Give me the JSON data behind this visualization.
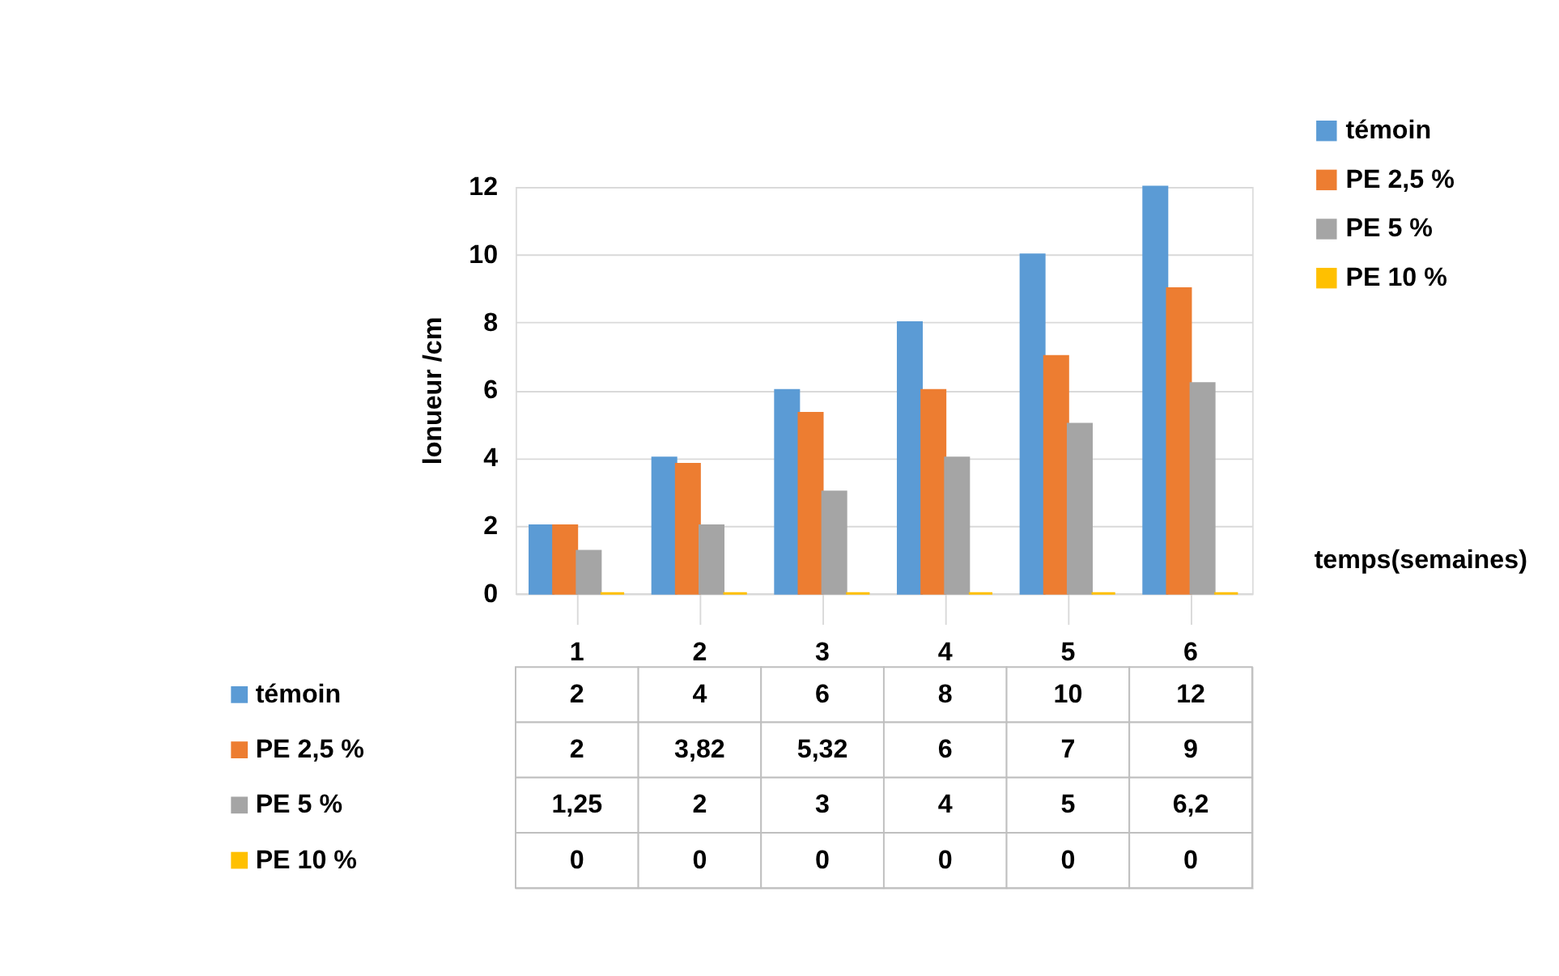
{
  "chart_data": {
    "type": "bar",
    "xlabel": "temps(semaines)",
    "ylabel": "lonueur /cm",
    "categories": [
      "1",
      "2",
      "3",
      "4",
      "5",
      "6"
    ],
    "series": [
      {
        "name": "témoin",
        "color": "#5b9bd5",
        "values": [
          2,
          4,
          6,
          8,
          10,
          12
        ],
        "value_labels": [
          "2",
          "4",
          "6",
          "8",
          "10",
          "12"
        ]
      },
      {
        "name": "PE 2,5 %",
        "color": "#ed7d31",
        "values": [
          2,
          3.82,
          5.32,
          6,
          7,
          9
        ],
        "value_labels": [
          "2",
          "3,82",
          "5,32",
          "6",
          "7",
          "9"
        ]
      },
      {
        "name": "PE 5 %",
        "color": "#a5a5a5",
        "values": [
          1.25,
          2,
          3,
          4,
          5,
          6.2
        ],
        "value_labels": [
          "1,25",
          "2",
          "3",
          "4",
          "5",
          "6,2"
        ]
      },
      {
        "name": "PE 10 %",
        "color": "#ffc000",
        "values": [
          0,
          0,
          0,
          0,
          0,
          0
        ],
        "value_labels": [
          "0",
          "0",
          "0",
          "0",
          "0",
          "0"
        ]
      }
    ],
    "ylim": [
      0,
      12
    ],
    "yticks": [
      0,
      2,
      4,
      6,
      8,
      10,
      12
    ],
    "grid": "y",
    "legend": "top right"
  }
}
